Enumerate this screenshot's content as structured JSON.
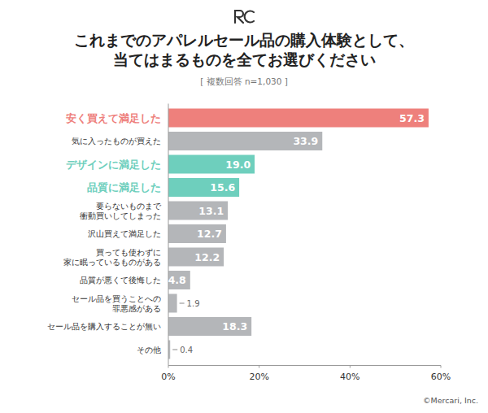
{
  "chart_data": {
    "type": "bar",
    "orientation": "horizontal",
    "title": "これまでのアパレルセール品の購入体験として、\n当てはまるものを全てお選びください",
    "subtitle": "[ 複数回答 n=1,030 ]",
    "annotation": "©Mercari, Inc.",
    "categories": [
      "安く買えて満足した",
      "気に入ったものが買えた",
      "デザインに満足した",
      "品質に満足した",
      "要らないものまで\n衝動買いしてしまった",
      "沢山買えて満足した",
      "買っても使わずに\n家に眠っているものがある",
      "品質が悪くて後悔した",
      "セール品を買うことへの\n罪悪感がある",
      "セール品を購入することが無い",
      "その他"
    ],
    "values": [
      57.3,
      33.9,
      19.0,
      15.6,
      13.1,
      12.7,
      12.2,
      4.8,
      1.9,
      18.3,
      0.4
    ],
    "value_labels": [
      "57.3",
      "33.9",
      "19.0",
      "15.6",
      "13.1",
      "12.7",
      "12.2",
      "4.8",
      "1.9",
      "18.3",
      "0.4"
    ],
    "colors": [
      "#ee807c",
      "#b4b6b9",
      "#6ecfbd",
      "#6ecfbd",
      "#b4b6b9",
      "#b4b6b9",
      "#b4b6b9",
      "#b4b6b9",
      "#b4b6b9",
      "#b4b6b9",
      "#b4b6b9"
    ],
    "xlim": [
      0,
      60
    ],
    "xticks": [
      {
        "value": 0,
        "label": "0%"
      },
      {
        "value": 20,
        "label": "20%"
      },
      {
        "value": 40,
        "label": "40%"
      },
      {
        "value": 60,
        "label": "60%"
      }
    ],
    "grid": false,
    "data_labels": true
  }
}
